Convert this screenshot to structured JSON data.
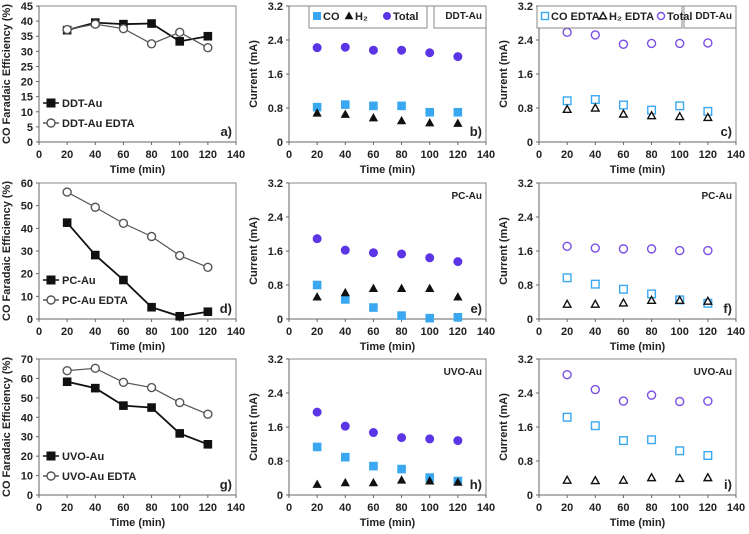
{
  "chart_data": [
    {
      "panel": "a)",
      "type": "line",
      "sample": "",
      "ylabel": "CO Faradaic Efficiency (%)",
      "xlabel": "Time (min)",
      "xlim": [
        0,
        140
      ],
      "ylim": [
        0,
        45
      ],
      "xticks": [
        0,
        20,
        40,
        60,
        80,
        100,
        120,
        140
      ],
      "yticks": [
        0,
        5,
        10,
        15,
        20,
        25,
        30,
        35,
        40,
        45
      ],
      "legend": "bottom-left",
      "series": [
        {
          "name": "DDT-Au",
          "marker": "square",
          "filled": true,
          "color": "#111111",
          "line": true,
          "x": [
            20,
            40,
            60,
            80,
            100,
            120
          ],
          "y": [
            37,
            39.5,
            39,
            39.2,
            33.3,
            35
          ]
        },
        {
          "name": "DDT-Au EDTA",
          "marker": "circle",
          "filled": false,
          "color": "#555555",
          "line": true,
          "x": [
            20,
            40,
            60,
            80,
            100,
            120
          ],
          "y": [
            37.2,
            39,
            37.5,
            32.5,
            36.3,
            31.2
          ]
        }
      ]
    },
    {
      "panel": "b)",
      "type": "scatter",
      "sample": "DDT-Au",
      "ylabel": "Current (mA)",
      "xlabel": "Time (min)",
      "xlim": [
        0,
        140
      ],
      "ylim": [
        0,
        3.2
      ],
      "xticks": [
        0,
        20,
        40,
        60,
        80,
        100,
        120,
        140
      ],
      "yticks": [
        "0",
        "0.8",
        "1.6",
        "2.4",
        "3.2"
      ],
      "legend": "top",
      "series": [
        {
          "name": "CO",
          "marker": "square",
          "filled": true,
          "color": "#3aa8f0",
          "x": [
            20,
            40,
            60,
            80,
            100,
            120
          ],
          "y": [
            0.82,
            0.88,
            0.85,
            0.85,
            0.7,
            0.7
          ]
        },
        {
          "name": "H₂",
          "marker": "triangle",
          "filled": true,
          "color": "#111111",
          "x": [
            20,
            40,
            60,
            80,
            100,
            120
          ],
          "y": [
            0.68,
            0.65,
            0.57,
            0.5,
            0.45,
            0.44
          ]
        },
        {
          "name": "Total",
          "marker": "circle",
          "filled": true,
          "color": "#5b35e6",
          "x": [
            20,
            40,
            60,
            80,
            100,
            120
          ],
          "y": [
            2.22,
            2.23,
            2.16,
            2.16,
            2.1,
            2.01
          ]
        }
      ]
    },
    {
      "panel": "c)",
      "type": "scatter",
      "sample": "DDT-Au",
      "ylabel": "Current (mA)",
      "xlabel": "Time (min)",
      "xlim": [
        0,
        140
      ],
      "ylim": [
        0,
        3.2
      ],
      "xticks": [
        0,
        20,
        40,
        60,
        80,
        100,
        120,
        140
      ],
      "yticks": [
        "0",
        "0.8",
        "1.6",
        "2.4",
        "3.2"
      ],
      "legend": "top",
      "series": [
        {
          "name": "CO EDTA",
          "marker": "square",
          "filled": false,
          "color": "#3aa8f0",
          "x": [
            20,
            40,
            60,
            80,
            100,
            120
          ],
          "y": [
            0.97,
            1.0,
            0.87,
            0.75,
            0.85,
            0.72
          ]
        },
        {
          "name": "H₂ EDTA",
          "marker": "triangle",
          "filled": false,
          "color": "#111111",
          "x": [
            20,
            40,
            60,
            80,
            100,
            120
          ],
          "y": [
            0.77,
            0.8,
            0.66,
            0.62,
            0.6,
            0.58
          ]
        },
        {
          "name": "Total",
          "marker": "circle",
          "filled": false,
          "color": "#7a4fe6",
          "x": [
            20,
            40,
            60,
            80,
            100,
            120
          ],
          "y": [
            2.58,
            2.52,
            2.3,
            2.32,
            2.32,
            2.33
          ]
        }
      ]
    },
    {
      "panel": "d)",
      "type": "line",
      "sample": "",
      "ylabel": "CO Faradaic Efficiency (%)",
      "xlabel": "Time (min)",
      "xlim": [
        0,
        140
      ],
      "ylim": [
        0,
        60
      ],
      "xticks": [
        0,
        20,
        40,
        60,
        80,
        100,
        120,
        140
      ],
      "yticks": [
        0,
        10,
        20,
        30,
        40,
        50,
        60
      ],
      "legend": "bottom-left",
      "series": [
        {
          "name": "PC-Au",
          "marker": "square",
          "filled": true,
          "color": "#111111",
          "line": true,
          "x": [
            20,
            40,
            60,
            80,
            100,
            120
          ],
          "y": [
            42.5,
            28.2,
            17.2,
            5.2,
            1.2,
            3.2
          ]
        },
        {
          "name": "PC-Au EDTA",
          "marker": "circle",
          "filled": false,
          "color": "#555555",
          "line": true,
          "x": [
            20,
            40,
            60,
            80,
            100,
            120
          ],
          "y": [
            56,
            49.3,
            42.2,
            36.4,
            28,
            22.8
          ]
        }
      ]
    },
    {
      "panel": "e)",
      "type": "scatter",
      "sample": "PC-Au",
      "ylabel": "Current (mA)",
      "xlabel": "Time (min)",
      "xlim": [
        0,
        140
      ],
      "ylim": [
        0,
        3.2
      ],
      "xticks": [
        0,
        20,
        40,
        60,
        80,
        100,
        120,
        140
      ],
      "yticks": [
        "0",
        "0.8",
        "1.6",
        "2.4",
        "3.2"
      ],
      "legend": "none",
      "series": [
        {
          "name": "CO",
          "marker": "square",
          "filled": true,
          "color": "#3aa8f0",
          "x": [
            20,
            40,
            60,
            80,
            100,
            120
          ],
          "y": [
            0.8,
            0.46,
            0.27,
            0.08,
            0.02,
            0.04
          ]
        },
        {
          "name": "H₂",
          "marker": "triangle",
          "filled": true,
          "color": "#111111",
          "x": [
            20,
            40,
            60,
            80,
            100,
            120
          ],
          "y": [
            0.52,
            0.62,
            0.72,
            0.72,
            0.72,
            0.52
          ]
        },
        {
          "name": "Total",
          "marker": "circle",
          "filled": true,
          "color": "#5b35e6",
          "x": [
            20,
            40,
            60,
            80,
            100,
            120
          ],
          "y": [
            1.89,
            1.62,
            1.56,
            1.53,
            1.44,
            1.35
          ]
        }
      ]
    },
    {
      "panel": "f)",
      "type": "scatter",
      "sample": "PC-Au",
      "ylabel": "Current (mA)",
      "xlabel": "Time (min)",
      "xlim": [
        0,
        140
      ],
      "ylim": [
        0,
        3.2
      ],
      "xticks": [
        0,
        20,
        40,
        60,
        80,
        100,
        120,
        140
      ],
      "yticks": [
        "0",
        "0.8",
        "1.6",
        "2.4",
        "3.2"
      ],
      "legend": "none",
      "series": [
        {
          "name": "CO EDTA",
          "marker": "square",
          "filled": false,
          "color": "#3aa8f0",
          "x": [
            20,
            40,
            60,
            80,
            100,
            120
          ],
          "y": [
            0.97,
            0.82,
            0.7,
            0.59,
            0.45,
            0.37
          ]
        },
        {
          "name": "H₂ EDTA",
          "marker": "triangle",
          "filled": false,
          "color": "#111111",
          "x": [
            20,
            40,
            60,
            80,
            100,
            120
          ],
          "y": [
            0.35,
            0.35,
            0.38,
            0.44,
            0.44,
            0.42
          ]
        },
        {
          "name": "Total",
          "marker": "circle",
          "filled": false,
          "color": "#7a4fe6",
          "x": [
            20,
            40,
            60,
            80,
            100,
            120
          ],
          "y": [
            1.71,
            1.67,
            1.65,
            1.65,
            1.61,
            1.61
          ]
        }
      ]
    },
    {
      "panel": "g)",
      "type": "line",
      "sample": "",
      "ylabel": "CO Faradaic Efficiency (%)",
      "xlabel": "Time (min)",
      "xlim": [
        0,
        140
      ],
      "ylim": [
        0,
        70
      ],
      "xticks": [
        0,
        20,
        40,
        60,
        80,
        100,
        120,
        140
      ],
      "yticks": [
        0,
        10,
        20,
        30,
        40,
        50,
        60,
        70
      ],
      "legend": "bottom-left",
      "series": [
        {
          "name": "UVO-Au",
          "marker": "square",
          "filled": true,
          "color": "#111111",
          "line": true,
          "x": [
            20,
            40,
            60,
            80,
            100,
            120
          ],
          "y": [
            58.3,
            55,
            46,
            45,
            31.7,
            26.1
          ]
        },
        {
          "name": "UVO-Au EDTA",
          "marker": "circle",
          "filled": false,
          "color": "#555555",
          "line": true,
          "x": [
            20,
            40,
            60,
            80,
            100,
            120
          ],
          "y": [
            64,
            65.2,
            58,
            55.3,
            47.6,
            41.6
          ]
        }
      ]
    },
    {
      "panel": "h)",
      "type": "scatter",
      "sample": "UVO-Au",
      "ylabel": "Current (mA)",
      "xlabel": "Time (min)",
      "xlim": [
        0,
        140
      ],
      "ylim": [
        0,
        3.2
      ],
      "xticks": [
        0,
        20,
        40,
        60,
        80,
        100,
        120,
        140
      ],
      "yticks": [
        "0",
        "0.8",
        "1.6",
        "2.4",
        "3.2"
      ],
      "legend": "none",
      "series": [
        {
          "name": "CO",
          "marker": "square",
          "filled": true,
          "color": "#3aa8f0",
          "x": [
            20,
            40,
            60,
            80,
            100,
            120
          ],
          "y": [
            1.13,
            0.89,
            0.68,
            0.61,
            0.41,
            0.33
          ]
        },
        {
          "name": "H₂",
          "marker": "triangle",
          "filled": true,
          "color": "#111111",
          "x": [
            20,
            40,
            60,
            80,
            100,
            120
          ],
          "y": [
            0.25,
            0.29,
            0.29,
            0.35,
            0.33,
            0.3
          ]
        },
        {
          "name": "Total",
          "marker": "circle",
          "filled": true,
          "color": "#5b35e6",
          "x": [
            20,
            40,
            60,
            80,
            100,
            120
          ],
          "y": [
            1.95,
            1.62,
            1.47,
            1.35,
            1.32,
            1.28
          ]
        }
      ]
    },
    {
      "panel": "i)",
      "type": "scatter",
      "sample": "UVO-Au",
      "ylabel": "Current (mA)",
      "xlabel": "Time (min)",
      "xlim": [
        0,
        140
      ],
      "ylim": [
        0,
        3.2
      ],
      "xticks": [
        0,
        20,
        40,
        60,
        80,
        100,
        120,
        140
      ],
      "yticks": [
        "0",
        "0.8",
        "1.6",
        "2.4",
        "3.2"
      ],
      "legend": "none",
      "series": [
        {
          "name": "CO EDTA",
          "marker": "square",
          "filled": false,
          "color": "#3aa8f0",
          "x": [
            20,
            40,
            60,
            80,
            100,
            120
          ],
          "y": [
            1.83,
            1.63,
            1.28,
            1.3,
            1.04,
            0.93
          ]
        },
        {
          "name": "H₂ EDTA",
          "marker": "triangle",
          "filled": false,
          "color": "#111111",
          "x": [
            20,
            40,
            60,
            80,
            100,
            120
          ],
          "y": [
            0.35,
            0.34,
            0.35,
            0.41,
            0.39,
            0.41
          ]
        },
        {
          "name": "Total",
          "marker": "circle",
          "filled": false,
          "color": "#7a4fe6",
          "x": [
            20,
            40,
            60,
            80,
            100,
            120
          ],
          "y": [
            2.83,
            2.48,
            2.21,
            2.35,
            2.2,
            2.21
          ]
        }
      ]
    }
  ]
}
